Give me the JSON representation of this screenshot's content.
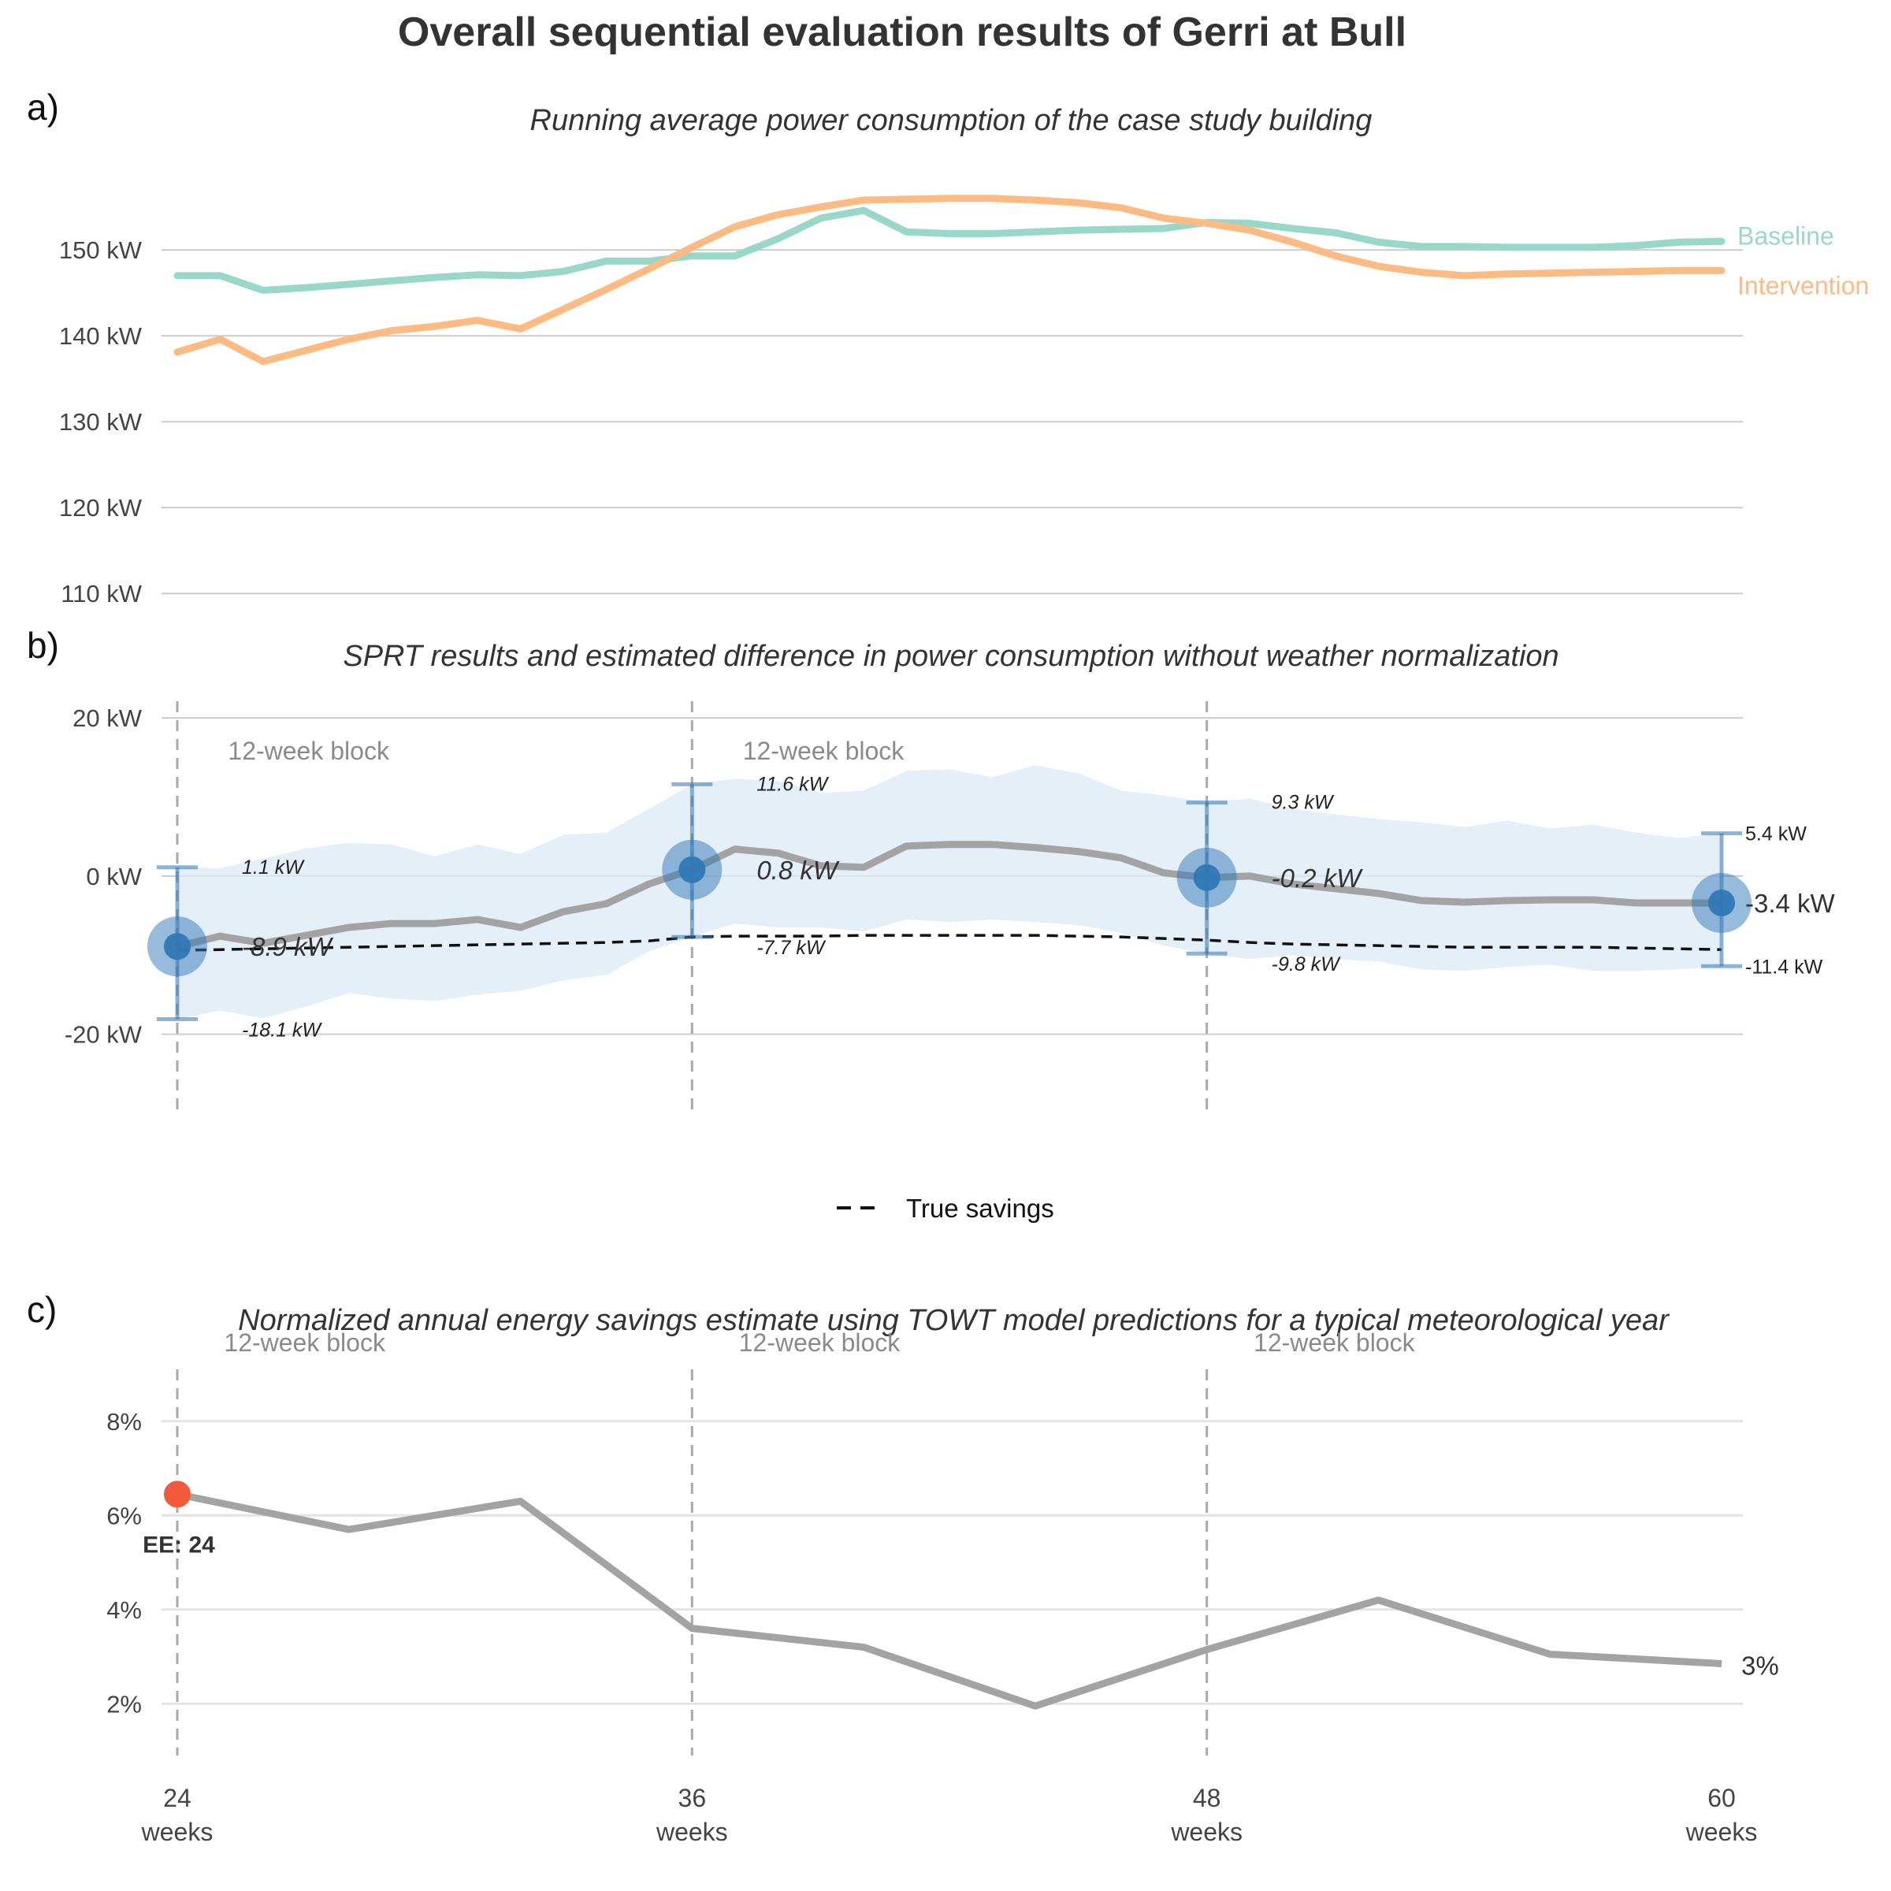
{
  "figure": {
    "title": "Overall sequential evaluation results of Gerri at Bull",
    "panel_a_label": "a)",
    "panel_b_label": "b)",
    "panel_c_label": "c)"
  },
  "colors": {
    "baseline": "#99D8C9",
    "intervention": "#FDBB84",
    "estimate_line": "#A3A3A3",
    "ci_band": "#DCE9F5",
    "sprt_marker": "#2F78B5",
    "true_savings": "#111111",
    "ee_marker": "#F25A3C",
    "block_label": "#8A8A8A",
    "grid": "#CCCCCC"
  },
  "chart_data": [
    {
      "type": "line",
      "panel": "a",
      "title": "Running average power consumption of the case study building",
      "xlabel": "",
      "ylabel": "",
      "ylim": [
        108,
        158
      ],
      "yticks": [
        "110 kW",
        "120 kW",
        "130 kW",
        "140 kW",
        "150 kW"
      ],
      "ytick_values": [
        110,
        120,
        130,
        140,
        150
      ],
      "grid": "horizontal",
      "legend": "direct labels at right end of lines",
      "x": [
        24,
        25,
        26,
        27,
        28,
        29,
        30,
        31,
        32,
        33,
        34,
        35,
        36,
        37,
        38,
        39,
        40,
        41,
        42,
        43,
        44,
        45,
        46,
        47,
        48,
        49,
        50,
        51,
        52,
        53,
        54,
        55,
        56,
        57,
        58,
        59,
        60
      ],
      "series": [
        {
          "name": "Baseline",
          "values": [
            147.0,
            147.0,
            145.3,
            145.6,
            146.0,
            146.4,
            146.8,
            147.1,
            147.0,
            147.5,
            148.7,
            148.7,
            149.3,
            149.3,
            151.3,
            153.7,
            154.6,
            152.1,
            151.9,
            151.9,
            152.1,
            152.3,
            152.4,
            152.5,
            153.2,
            153.1,
            152.5,
            152.0,
            150.9,
            150.4,
            150.4,
            150.3,
            150.3,
            150.3,
            150.5,
            150.9,
            151.0
          ]
        },
        {
          "name": "Intervention",
          "values": [
            138.1,
            139.6,
            137.0,
            138.3,
            139.6,
            140.6,
            141.1,
            141.8,
            140.8,
            143.1,
            145.4,
            147.8,
            150.3,
            152.7,
            154.1,
            155.0,
            155.8,
            155.9,
            156.0,
            156.0,
            155.8,
            155.5,
            154.9,
            153.7,
            153.1,
            152.3,
            150.9,
            149.3,
            148.1,
            147.4,
            147.0,
            147.2,
            147.3,
            147.4,
            147.5,
            147.6,
            147.6
          ]
        }
      ]
    },
    {
      "type": "line",
      "panel": "b",
      "title": "SPRT results and estimated difference in power consumption without weather normalization",
      "xlabel": "",
      "ylabel": "",
      "ylim": [
        -30,
        22
      ],
      "yticks": [
        "-20 kW",
        "0 kW",
        "20 kW"
      ],
      "ytick_values": [
        -20,
        0,
        20
      ],
      "grid": "horizontal",
      "legend": "bottom-center",
      "block_labels": [
        "12-week block",
        "12-week block"
      ],
      "legend_label": "True savings",
      "x": [
        24,
        25,
        26,
        27,
        28,
        29,
        30,
        31,
        32,
        33,
        34,
        35,
        36,
        37,
        38,
        39,
        40,
        41,
        42,
        43,
        44,
        45,
        46,
        47,
        48,
        49,
        50,
        51,
        52,
        53,
        54,
        55,
        56,
        57,
        58,
        59,
        60
      ],
      "estimate": [
        -8.9,
        -7.6,
        -8.5,
        -7.5,
        -6.5,
        -6.0,
        -6.0,
        -5.5,
        -6.5,
        -4.5,
        -3.5,
        -1.0,
        0.8,
        3.4,
        2.9,
        1.3,
        1.1,
        3.8,
        4.0,
        4.0,
        3.6,
        3.1,
        2.3,
        0.4,
        -0.2,
        0.0,
        -1.0,
        -1.6,
        -2.2,
        -3.1,
        -3.3,
        -3.1,
        -3.0,
        -3.0,
        -3.4,
        -3.4,
        -3.4
      ],
      "ci_lower": [
        -18.1,
        -17.0,
        -18.0,
        -16.5,
        -14.8,
        -15.5,
        -15.8,
        -15.0,
        -14.5,
        -13.2,
        -12.5,
        -9.5,
        -7.7,
        -6.0,
        -6.5,
        -6.5,
        -7.0,
        -5.5,
        -5.8,
        -5.5,
        -5.8,
        -6.2,
        -7.2,
        -8.8,
        -9.8,
        -10.5,
        -10.0,
        -10.5,
        -10.8,
        -11.8,
        -12.0,
        -11.5,
        -11.2,
        -12.0,
        -12.0,
        -11.8,
        -11.4
      ],
      "ci_upper": [
        1.1,
        1.0,
        2.2,
        3.5,
        4.2,
        4.0,
        2.5,
        4.0,
        2.8,
        5.2,
        5.5,
        8.5,
        11.6,
        12.3,
        12.0,
        10.5,
        10.8,
        13.3,
        13.5,
        12.5,
        14.0,
        13.0,
        10.8,
        10.2,
        9.3,
        9.8,
        8.5,
        7.8,
        7.2,
        6.8,
        6.2,
        7.0,
        6.0,
        6.5,
        5.5,
        4.8,
        5.4
      ],
      "true_savings": [
        -9.4,
        -9.3,
        -9.2,
        -9.1,
        -9.0,
        -8.9,
        -8.8,
        -8.7,
        -8.6,
        -8.5,
        -8.4,
        -8.2,
        -7.7,
        -7.6,
        -7.6,
        -7.6,
        -7.5,
        -7.5,
        -7.5,
        -7.5,
        -7.5,
        -7.6,
        -7.7,
        -7.9,
        -8.1,
        -8.4,
        -8.6,
        -8.7,
        -8.8,
        -8.9,
        -9.0,
        -9.0,
        -9.0,
        -9.0,
        -9.1,
        -9.2,
        -9.3
      ],
      "sprt_points": [
        {
          "x": 24,
          "estimate": -8.9,
          "lower": -18.1,
          "upper": 1.1,
          "estimate_label": "-8.9 kW",
          "lower_label": "-18.1 kW",
          "upper_label": "1.1 kW"
        },
        {
          "x": 36,
          "estimate": 0.8,
          "lower": -7.7,
          "upper": 11.6,
          "estimate_label": "0.8 kW",
          "lower_label": "-7.7 kW",
          "upper_label": "11.6 kW"
        },
        {
          "x": 48,
          "estimate": -0.2,
          "lower": -9.8,
          "upper": 9.3,
          "estimate_label": "-0.2 kW",
          "lower_label": "-9.8 kW",
          "upper_label": "9.3 kW"
        },
        {
          "x": 60,
          "estimate": -3.4,
          "lower": -11.4,
          "upper": 5.4,
          "estimate_label": "-3.4 kW",
          "lower_label": "-11.4 kW",
          "upper_label": "5.4 kW"
        }
      ],
      "block_boundaries": [
        24,
        36,
        48
      ]
    },
    {
      "type": "line",
      "panel": "c",
      "title": "Normalized annual energy savings estimate using TOWT model predictions for a typical meteorological year",
      "xlabel": "",
      "ylabel": "",
      "ylim": [
        1.0,
        9.0
      ],
      "yticks": [
        "2%",
        "4%",
        "6%",
        "8%"
      ],
      "ytick_values": [
        2,
        4,
        6,
        8
      ],
      "xticks": [
        "24",
        "36",
        "48",
        "60"
      ],
      "xtick_values": [
        24,
        36,
        48,
        60
      ],
      "xtick_unit": "weeks",
      "grid": "horizontal",
      "block_labels": [
        "12-week block",
        "12-week block",
        "12-week block"
      ],
      "block_boundaries": [
        24,
        36,
        48
      ],
      "x": [
        24,
        28,
        32,
        36,
        40,
        44,
        48,
        52,
        56,
        60
      ],
      "values": [
        6.45,
        5.7,
        6.3,
        3.6,
        3.2,
        1.95,
        3.15,
        4.2,
        3.05,
        2.85
      ],
      "end_label": "3%",
      "ee_point": {
        "x": 24,
        "value": 6.45,
        "label": "EE: 24"
      }
    }
  ]
}
